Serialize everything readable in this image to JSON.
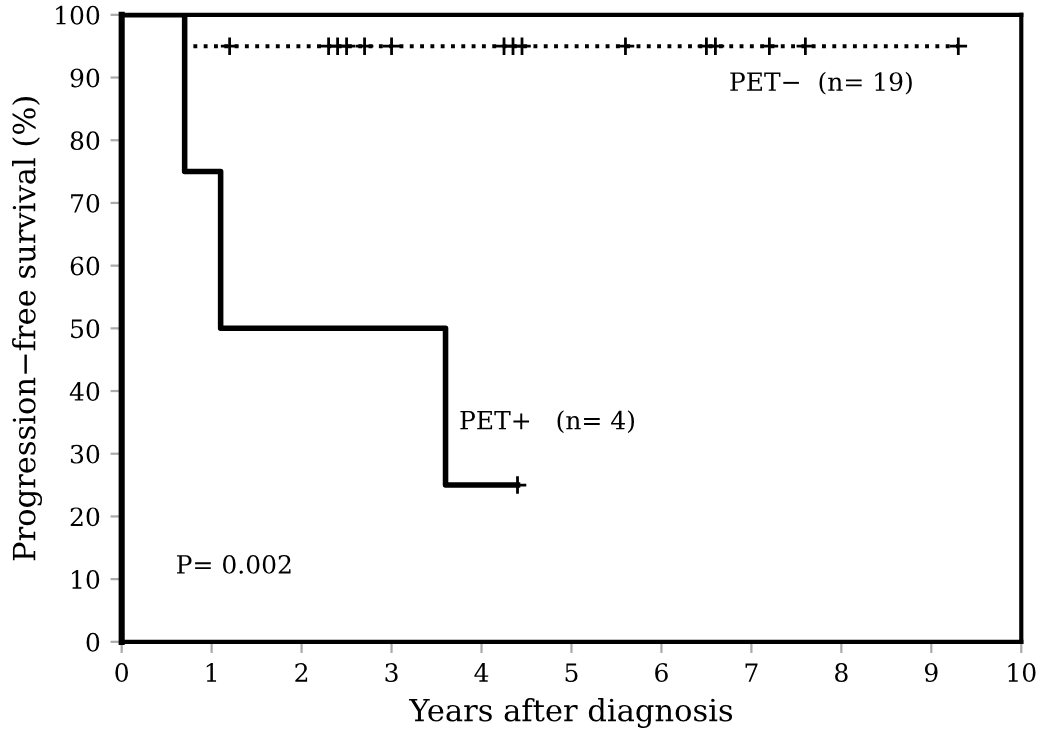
{
  "chart_data": {
    "type": "step",
    "xlabel": "Years after diagnosis",
    "ylabel": "Progression−free survival (%)",
    "xlim": [
      0,
      10
    ],
    "ylim": [
      0,
      100
    ],
    "xticks": [
      0,
      1,
      2,
      3,
      4,
      5,
      6,
      7,
      8,
      9,
      10
    ],
    "yticks": [
      0,
      10,
      20,
      30,
      40,
      50,
      60,
      70,
      80,
      90,
      100
    ],
    "grid": false,
    "legend": false,
    "series": [
      {
        "color": "#000000",
        "line_style": "dotted",
        "x": [
          0,
          0.7,
          9.3
        ],
        "values": [
          100,
          95,
          95
        ]
      },
      {
        "color": "#000000",
        "line_style": "solid",
        "x": [
          0,
          0.7,
          1.1,
          3.6,
          4.4
        ],
        "values": [
          100,
          75,
          50,
          25,
          25
        ]
      },
      {
        "type": "scatter",
        "color": "#000000",
        "marker": "cross",
        "x": [
          1.2,
          2.3,
          2.4,
          2.5,
          2.7,
          3.0,
          4.25,
          4.35,
          4.45,
          5.6,
          6.5,
          6.6,
          7.2,
          7.6,
          9.3
        ],
        "values": [
          95,
          95,
          95,
          95,
          95,
          95,
          95,
          95,
          95,
          95,
          95,
          95,
          95,
          95,
          95
        ]
      },
      {
        "type": "scatter",
        "color": "#000000",
        "marker": "cross",
        "x": [
          4.4
        ],
        "values": [
          25
        ]
      }
    ],
    "annotations": [
      "PET−  (n= 19)",
      "PET+   (n= 4)",
      "P= 0.002"
    ]
  }
}
